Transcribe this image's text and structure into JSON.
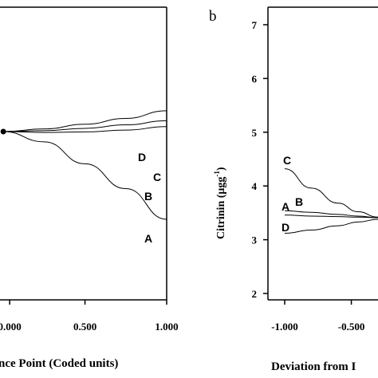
{
  "chart_data": [
    {
      "type": "line",
      "title": "",
      "xlabel": "nce Point (Coded units)",
      "ylabel": "",
      "x_ticks": [
        "0.000",
        "0.500",
        "1.000"
      ],
      "x_tick_values": [
        0,
        0.5,
        1
      ],
      "xlim": [
        -0.03,
        1.0
      ],
      "ylim": [
        0,
        1
      ],
      "reference_point": {
        "x": 0,
        "y": 0.575
      },
      "series": [
        {
          "name": "A",
          "x": [
            0,
            0.25,
            0.5,
            0.75,
            1.0
          ],
          "y": [
            0.575,
            0.54,
            0.465,
            0.38,
            0.275
          ]
        },
        {
          "name": "B",
          "x": [
            0,
            0.25,
            0.5,
            0.75,
            1.0
          ],
          "y": [
            0.575,
            0.572,
            0.574,
            0.58,
            0.592
          ]
        },
        {
          "name": "C",
          "x": [
            0,
            0.25,
            0.5,
            0.75,
            1.0
          ],
          "y": [
            0.575,
            0.578,
            0.586,
            0.598,
            0.612
          ]
        },
        {
          "name": "D",
          "x": [
            0,
            0.25,
            0.5,
            0.75,
            1.0
          ],
          "y": [
            0.575,
            0.584,
            0.6,
            0.62,
            0.646
          ]
        }
      ],
      "panel_label": ""
    },
    {
      "type": "line",
      "title": "",
      "xlabel": "Deviation from I",
      "ylabel": "Citrinin (μgg",
      "ylabel_sup": "-1",
      "ylabel_close": ")",
      "y_ticks": [
        "2",
        "3",
        "4",
        "5",
        "6",
        "7"
      ],
      "y_tick_values": [
        2,
        3,
        4,
        5,
        6,
        7
      ],
      "x_ticks": [
        "-1.000",
        "-0.500"
      ],
      "x_tick_values": [
        -1,
        -0.5
      ],
      "ylim": [
        1.6,
        7.3
      ],
      "xlim": [
        -1.0,
        -0.3
      ],
      "series": [
        {
          "name": "C",
          "x": [
            -1.0,
            -0.8,
            -0.6,
            -0.45,
            -0.3
          ],
          "y": [
            4.32,
            3.96,
            3.68,
            3.52,
            3.42
          ]
        },
        {
          "name": "A",
          "x": [
            -1.0,
            -0.8,
            -0.6,
            -0.45,
            -0.3
          ],
          "y": [
            3.46,
            3.44,
            3.43,
            3.42,
            3.41
          ]
        },
        {
          "name": "B",
          "x": [
            -1.0,
            -0.8,
            -0.6,
            -0.45,
            -0.3
          ],
          "y": [
            3.54,
            3.51,
            3.47,
            3.44,
            3.41
          ]
        },
        {
          "name": "D",
          "x": [
            -1.0,
            -0.8,
            -0.6,
            -0.45,
            -0.3
          ],
          "y": [
            3.12,
            3.18,
            3.26,
            3.33,
            3.38
          ]
        }
      ],
      "panel_label": "b"
    }
  ]
}
